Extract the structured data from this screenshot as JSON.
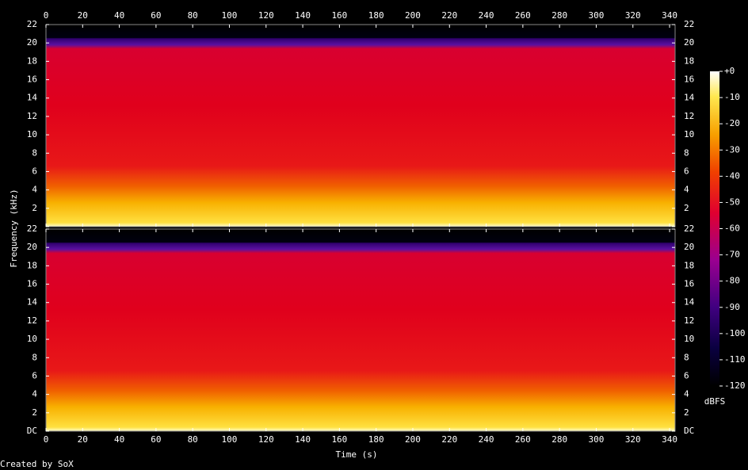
{
  "chart_data": {
    "type": "spectrogram",
    "xlabel": "Time (s)",
    "ylabel": "Frequency (kHz)",
    "footer": "Created by SoX",
    "xlim": [
      0,
      343
    ],
    "xticks": [
      0,
      20,
      40,
      60,
      80,
      100,
      120,
      140,
      160,
      180,
      200,
      220,
      240,
      260,
      280,
      300,
      320,
      340
    ],
    "ylim": [
      0,
      22
    ],
    "yticks": [
      {
        "value": 0,
        "label": "DC"
      },
      2,
      4,
      6,
      8,
      10,
      12,
      14,
      16,
      18,
      20,
      22
    ],
    "colorbar": {
      "label": "dBFS",
      "lim": [
        -120,
        0
      ],
      "ticks": [
        {
          "value": 0,
          "label": "+0"
        },
        -10,
        -20,
        -30,
        -40,
        -50,
        -60,
        -70,
        -80,
        -90,
        -100,
        -110,
        -120
      ]
    }
  }
}
